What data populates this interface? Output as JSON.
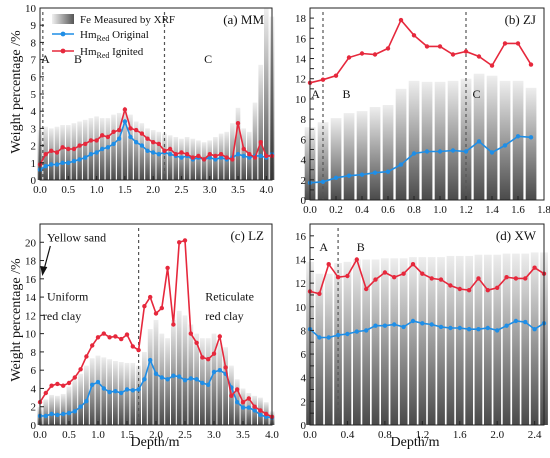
{
  "figure": {
    "ylabel": "Weight percentage /%",
    "xlabel": "Depth/m",
    "legend": [
      {
        "label": "Fe Measured by XRF",
        "kind": "bar"
      },
      {
        "label": "HmRed Original",
        "kind": "line",
        "base": "Hm",
        "sub": "Red",
        "rest": " Original"
      },
      {
        "label": "HmRed Ignited",
        "kind": "line",
        "base": "Hm",
        "sub": "Red",
        "rest": " Ignited"
      }
    ],
    "colors": {
      "original": "#1f8ee6",
      "ignited": "#e6283c",
      "bar_light": "#eeeeee",
      "bar_dark": "#4a4a4a"
    }
  },
  "chart_data": [
    {
      "id": "MM",
      "title": "(a) MM",
      "type": "bar",
      "xlim": [
        0.0,
        4.1
      ],
      "ylim": [
        0,
        10
      ],
      "xticks": [
        "0.0",
        "0.5",
        "1.0",
        "1.5",
        "2.0",
        "2.5",
        "3.0",
        "3.5",
        "4.0"
      ],
      "yticks": [
        "0",
        "1",
        "2",
        "3",
        "4",
        "5",
        "6",
        "7",
        "8",
        "9",
        "10"
      ],
      "dividers": [
        0.05,
        2.2
      ],
      "annotations": [
        {
          "text": "A",
          "x": 0.02,
          "y": 6.8
        },
        {
          "text": "B",
          "x": 0.6,
          "y": 6.8
        },
        {
          "text": "C",
          "x": 2.9,
          "y": 6.8
        }
      ],
      "bars": {
        "x": [
          0.0,
          0.1,
          0.2,
          0.3,
          0.4,
          0.5,
          0.6,
          0.7,
          0.8,
          0.9,
          1.0,
          1.1,
          1.2,
          1.3,
          1.4,
          1.5,
          1.6,
          1.7,
          1.8,
          1.9,
          2.0,
          2.1,
          2.2,
          2.3,
          2.4,
          2.5,
          2.6,
          2.7,
          2.8,
          2.9,
          3.0,
          3.1,
          3.2,
          3.3,
          3.4,
          3.5,
          3.6,
          3.7,
          3.8,
          3.9,
          4.0,
          4.1
        ],
        "values": [
          2.9,
          3.1,
          3.0,
          3.1,
          3.2,
          3.2,
          3.3,
          3.4,
          3.5,
          3.6,
          3.7,
          3.6,
          3.6,
          3.8,
          3.9,
          4.1,
          3.8,
          3.4,
          3.3,
          3.0,
          2.9,
          2.8,
          2.7,
          2.6,
          2.5,
          2.4,
          2.5,
          2.4,
          2.3,
          2.2,
          2.3,
          2.5,
          2.7,
          2.8,
          3.3,
          4.2,
          3.0,
          2.8,
          4.5,
          6.7,
          10.0,
          9.5
        ]
      },
      "series": [
        {
          "name": "HmRed Original",
          "x": [
            0.0,
            0.1,
            0.2,
            0.3,
            0.4,
            0.5,
            0.6,
            0.7,
            0.8,
            0.9,
            1.0,
            1.1,
            1.2,
            1.3,
            1.4,
            1.5,
            1.6,
            1.7,
            1.8,
            1.9,
            2.0,
            2.1,
            2.2,
            2.3,
            2.4,
            2.5,
            2.6,
            2.7,
            2.8,
            2.9,
            3.0,
            3.1,
            3.2,
            3.3,
            3.4,
            3.5,
            3.6,
            3.7,
            3.8,
            3.9,
            4.0,
            4.1
          ],
          "values": [
            0.6,
            0.8,
            0.9,
            0.9,
            1.0,
            1.0,
            1.1,
            1.2,
            1.3,
            1.5,
            1.6,
            1.8,
            1.9,
            2.1,
            2.4,
            3.4,
            2.5,
            2.2,
            2.0,
            1.7,
            1.6,
            1.5,
            1.6,
            1.5,
            1.4,
            1.3,
            1.4,
            1.2,
            1.3,
            1.2,
            1.3,
            1.2,
            1.3,
            1.2,
            1.3,
            1.5,
            1.4,
            1.3,
            1.4,
            1.4,
            1.3,
            1.5
          ]
        },
        {
          "name": "HmRed Ignited",
          "x": [
            0.0,
            0.1,
            0.2,
            0.3,
            0.4,
            0.5,
            0.6,
            0.7,
            0.8,
            0.9,
            1.0,
            1.1,
            1.2,
            1.3,
            1.4,
            1.5,
            1.6,
            1.7,
            1.8,
            1.9,
            2.0,
            2.1,
            2.2,
            2.3,
            2.4,
            2.5,
            2.6,
            2.7,
            2.8,
            2.9,
            3.0,
            3.1,
            3.2,
            3.3,
            3.4,
            3.5,
            3.6,
            3.7,
            3.8,
            3.9,
            4.0,
            4.1
          ],
          "values": [
            0.9,
            1.5,
            1.7,
            1.6,
            1.9,
            1.8,
            1.8,
            2.0,
            2.1,
            2.3,
            2.3,
            2.6,
            2.5,
            2.8,
            2.9,
            4.1,
            3.0,
            2.9,
            2.7,
            2.4,
            2.2,
            2.1,
            1.7,
            1.8,
            1.5,
            1.6,
            1.5,
            1.3,
            1.4,
            1.2,
            1.5,
            1.4,
            1.5,
            1.3,
            1.2,
            3.3,
            1.8,
            1.5,
            1.3,
            2.2,
            1.4,
            1.4
          ]
        }
      ]
    },
    {
      "id": "ZJ",
      "title": "(b) ZJ",
      "type": "bar",
      "xlim": [
        0.0,
        1.8
      ],
      "ylim": [
        0,
        19
      ],
      "xticks": [
        "0.0",
        "0.2",
        "0.4",
        "0.6",
        "0.8",
        "1.0",
        "1.2",
        "1.4",
        "1.6",
        "1.8"
      ],
      "yticks": [
        "0",
        "1",
        "2",
        "3",
        "4",
        "5",
        "6",
        "7",
        "8",
        "9",
        "10",
        "11",
        "12",
        "13",
        "14",
        "15",
        "16",
        "17",
        "18",
        "19"
      ],
      "ytick_labels_shown": [
        "0",
        "2",
        "4",
        "6",
        "8",
        "10",
        "12",
        "14",
        "16",
        "18"
      ],
      "dividers": [
        0.1,
        1.2
      ],
      "annotations": [
        {
          "text": "A",
          "x": 0.01,
          "y": 10.1
        },
        {
          "text": "B",
          "x": 0.25,
          "y": 10.1
        },
        {
          "text": "C",
          "x": 1.25,
          "y": 10.1
        }
      ],
      "bars": {
        "x": [
          0.0,
          0.1,
          0.2,
          0.3,
          0.4,
          0.5,
          0.6,
          0.7,
          0.8,
          0.9,
          1.0,
          1.1,
          1.2,
          1.3,
          1.4,
          1.5,
          1.6,
          1.7
        ],
        "values": [
          7.2,
          7.7,
          8.1,
          8.6,
          8.8,
          9.2,
          9.4,
          11.0,
          11.8,
          11.7,
          11.7,
          11.8,
          12.0,
          12.5,
          12.3,
          11.8,
          11.8,
          11.1
        ]
      },
      "series": [
        {
          "name": "HmRed Original",
          "x": [
            0.0,
            0.1,
            0.2,
            0.3,
            0.4,
            0.5,
            0.6,
            0.7,
            0.8,
            0.9,
            1.0,
            1.1,
            1.2,
            1.3,
            1.4,
            1.5,
            1.6,
            1.7
          ],
          "values": [
            1.7,
            1.8,
            2.2,
            2.4,
            2.5,
            2.7,
            2.8,
            3.5,
            4.6,
            4.8,
            4.8,
            4.9,
            4.8,
            5.8,
            4.7,
            5.4,
            6.3,
            6.2
          ]
        },
        {
          "name": "HmRed Ignited",
          "x": [
            0.0,
            0.1,
            0.2,
            0.3,
            0.4,
            0.5,
            0.6,
            0.7,
            0.8,
            0.9,
            1.0,
            1.1,
            1.2,
            1.3,
            1.4,
            1.5,
            1.6,
            1.7
          ],
          "values": [
            11.6,
            11.9,
            12.3,
            14.1,
            14.5,
            14.4,
            15.0,
            17.8,
            16.3,
            15.2,
            15.2,
            14.4,
            14.7,
            14.2,
            13.3,
            15.5,
            15.5,
            13.4
          ]
        }
      ]
    },
    {
      "id": "LZ",
      "title": "(c) LZ",
      "type": "bar",
      "xlim": [
        0.0,
        4.0
      ],
      "ylim": [
        0,
        22
      ],
      "xticks": [
        "0.0",
        "0.5",
        "1.0",
        "1.5",
        "2.0",
        "2.5",
        "3.0",
        "3.5",
        "4.0"
      ],
      "yticks": [
        "0",
        "2",
        "4",
        "6",
        "8",
        "10",
        "12",
        "14",
        "16",
        "18",
        "20",
        "22"
      ],
      "ytick_labels_shown": [
        "0",
        "2",
        "4",
        "6",
        "8",
        "10",
        "12",
        "14",
        "16",
        "18",
        "20"
      ],
      "dividers": [
        1.7
      ],
      "annotations": [
        {
          "text": "Yellow sand",
          "x": 0.12,
          "y": 20.1
        },
        {
          "text": "Uniform",
          "x": 0.12,
          "y": 13.6
        },
        {
          "text": "red clay",
          "x": 0.05,
          "y": 11.5
        },
        {
          "text": "Reticulate",
          "x": 2.85,
          "y": 13.6
        },
        {
          "text": "red clay",
          "x": 2.85,
          "y": 11.5
        }
      ],
      "bars": {
        "x": [
          0.0,
          0.1,
          0.2,
          0.3,
          0.4,
          0.5,
          0.6,
          0.7,
          0.8,
          0.9,
          1.0,
          1.1,
          1.2,
          1.3,
          1.4,
          1.5,
          1.6,
          1.7,
          1.8,
          1.9,
          2.0,
          2.1,
          2.2,
          2.3,
          2.4,
          2.5,
          2.6,
          2.7,
          2.8,
          2.9,
          3.0,
          3.1,
          3.2,
          3.3,
          3.4,
          3.5,
          3.6,
          3.7,
          3.8,
          3.9,
          4.0
        ],
        "values": [
          2.0,
          2.8,
          3.3,
          3.2,
          3.4,
          4.2,
          5.0,
          5.6,
          6.5,
          7.3,
          7.6,
          7.4,
          7.2,
          7.0,
          6.9,
          6.8,
          6.8,
          6.5,
          8.0,
          10.5,
          11.5,
          10.0,
          9.5,
          11.5,
          12.5,
          12.0,
          11.0,
          10.0,
          9.5,
          9.5,
          10.0,
          9.0,
          8.5,
          6.5,
          5.0,
          4.0,
          3.5,
          3.2,
          3.0,
          2.5,
          1.5
        ]
      },
      "series": [
        {
          "name": "HmRed Original",
          "x": [
            0.0,
            0.1,
            0.2,
            0.3,
            0.4,
            0.5,
            0.6,
            0.7,
            0.8,
            0.9,
            1.0,
            1.1,
            1.2,
            1.3,
            1.4,
            1.5,
            1.6,
            1.7,
            1.8,
            1.9,
            2.0,
            2.1,
            2.2,
            2.3,
            2.4,
            2.5,
            2.6,
            2.7,
            2.8,
            2.9,
            3.0,
            3.1,
            3.2,
            3.3,
            3.4,
            3.5,
            3.6,
            3.7,
            3.8,
            3.9,
            4.0
          ],
          "values": [
            1.0,
            1.0,
            1.2,
            1.1,
            1.2,
            1.3,
            1.5,
            2.0,
            2.6,
            4.4,
            4.7,
            4.0,
            3.6,
            3.7,
            3.5,
            3.9,
            3.8,
            3.9,
            5.0,
            7.1,
            5.6,
            5.2,
            5.0,
            5.4,
            5.3,
            4.9,
            5.1,
            5.0,
            4.6,
            4.4,
            5.8,
            6.0,
            5.6,
            4.1,
            2.5,
            1.9,
            1.9,
            1.6,
            1.1,
            0.9,
            0.8
          ]
        },
        {
          "name": "HmRed Ignited",
          "x": [
            0.0,
            0.1,
            0.2,
            0.3,
            0.4,
            0.5,
            0.6,
            0.7,
            0.8,
            0.9,
            1.0,
            1.1,
            1.2,
            1.3,
            1.4,
            1.5,
            1.6,
            1.7,
            1.8,
            1.9,
            2.0,
            2.1,
            2.2,
            2.3,
            2.4,
            2.5,
            2.6,
            2.7,
            2.8,
            2.9,
            3.0,
            3.1,
            3.2,
            3.3,
            3.4,
            3.5,
            3.6,
            3.7,
            3.8,
            3.9,
            4.0
          ],
          "values": [
            2.5,
            3.5,
            4.3,
            4.5,
            4.3,
            4.6,
            5.2,
            6.1,
            7.5,
            8.7,
            9.6,
            10.0,
            9.6,
            9.7,
            9.4,
            9.9,
            8.6,
            8.2,
            13.0,
            14.0,
            12.2,
            12.8,
            17.2,
            11.0,
            20.0,
            20.2,
            10.0,
            9.0,
            7.4,
            7.2,
            7.8,
            9.7,
            6.3,
            3.2,
            3.9,
            2.5,
            2.9,
            2.0,
            1.6,
            1.2,
            0.9
          ]
        }
      ]
    },
    {
      "id": "XW",
      "title": "(d) XW",
      "type": "bar",
      "xlim": [
        0.0,
        2.5
      ],
      "ylim": [
        0,
        17
      ],
      "xticks": [
        "0.0",
        "0.4",
        "0.8",
        "1.2",
        "1.6",
        "2.0",
        "2.4"
      ],
      "yticks": [
        "0",
        "1",
        "2",
        "3",
        "4",
        "5",
        "6",
        "7",
        "8",
        "9",
        "10",
        "11",
        "12",
        "13",
        "14",
        "15",
        "16",
        "17"
      ],
      "ytick_labels_shown": [
        "0",
        "2",
        "4",
        "6",
        "8",
        "10",
        "12",
        "14",
        "16"
      ],
      "dividers": [
        0.3
      ],
      "annotations": [
        {
          "text": "A",
          "x": 0.1,
          "y": 14.7
        },
        {
          "text": "B",
          "x": 0.5,
          "y": 14.7
        }
      ],
      "bars": {
        "x": [
          0.0,
          0.1,
          0.2,
          0.3,
          0.4,
          0.5,
          0.6,
          0.7,
          0.8,
          0.9,
          1.0,
          1.1,
          1.2,
          1.3,
          1.4,
          1.5,
          1.6,
          1.7,
          1.8,
          1.9,
          2.0,
          2.1,
          2.2,
          2.3,
          2.4,
          2.5
        ],
        "values": [
          13.8,
          12.8,
          12.8,
          13.7,
          13.8,
          14.0,
          14.0,
          14.0,
          14.1,
          14.1,
          14.1,
          14.2,
          14.2,
          14.2,
          14.2,
          14.3,
          14.3,
          14.3,
          14.4,
          14.4,
          14.4,
          14.5,
          14.5,
          14.5,
          14.6,
          14.6
        ]
      },
      "series": [
        {
          "name": "HmRed Original",
          "x": [
            0.0,
            0.1,
            0.2,
            0.3,
            0.4,
            0.5,
            0.6,
            0.7,
            0.8,
            0.9,
            1.0,
            1.1,
            1.2,
            1.3,
            1.4,
            1.5,
            1.6,
            1.7,
            1.8,
            1.9,
            2.0,
            2.1,
            2.2,
            2.3,
            2.4,
            2.5
          ],
          "values": [
            8.1,
            7.4,
            7.4,
            7.6,
            7.7,
            7.9,
            8.0,
            8.4,
            8.4,
            8.5,
            8.3,
            8.8,
            8.6,
            8.5,
            8.3,
            8.2,
            8.2,
            8.1,
            8.1,
            8.2,
            8.0,
            8.4,
            8.8,
            8.7,
            8.1,
            8.6
          ]
        },
        {
          "name": "HmRed Ignited",
          "x": [
            0.0,
            0.1,
            0.2,
            0.3,
            0.4,
            0.5,
            0.6,
            0.7,
            0.8,
            0.9,
            1.0,
            1.1,
            1.2,
            1.3,
            1.4,
            1.5,
            1.6,
            1.7,
            1.8,
            1.9,
            2.0,
            2.1,
            2.2,
            2.3,
            2.4,
            2.5
          ],
          "values": [
            11.3,
            11.1,
            13.6,
            12.5,
            12.6,
            14.0,
            11.5,
            12.3,
            12.9,
            12.5,
            12.8,
            13.6,
            12.8,
            12.4,
            12.3,
            11.8,
            11.5,
            11.4,
            12.4,
            11.4,
            11.6,
            12.5,
            12.4,
            12.4,
            13.3,
            12.8
          ]
        }
      ]
    }
  ]
}
